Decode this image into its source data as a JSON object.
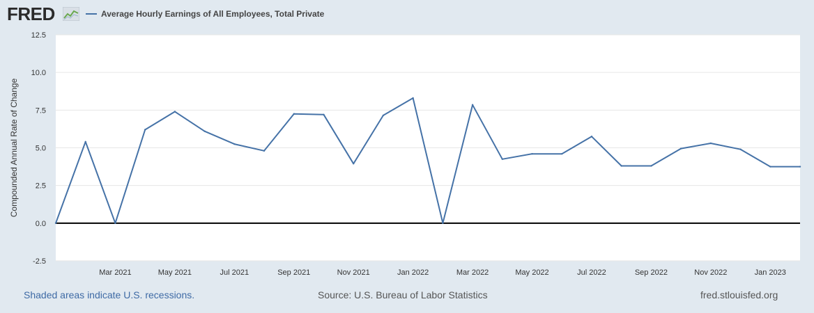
{
  "header": {
    "logo_text": "FRED",
    "logo_icon": "chart-line-icon",
    "legend_label": "Average Hourly Earnings of All Employees, Total Private"
  },
  "footer": {
    "recessions_note": "Shaded areas indicate U.S. recessions.",
    "source": "Source: U.S. Bureau of Labor Statistics",
    "site": "fred.stlouisfed.org"
  },
  "colors": {
    "page_background": "#e1e9f0",
    "plot_background": "#ffffff",
    "series_line": "#4572a7",
    "zero_line": "#000000",
    "gridline": "#e6e6e6",
    "link_text": "#3e6aa5"
  },
  "chart_data": {
    "type": "line",
    "ylabel": "Compounded Annual Rate of Change",
    "xlabel": "",
    "ylim": [
      -2.5,
      12.5
    ],
    "yticks": [
      "12.5",
      "10.0",
      "7.5",
      "5.0",
      "2.5",
      "0.0",
      "-2.5"
    ],
    "xlim": [
      "2021-01",
      "2023-02"
    ],
    "xtick_labels": [
      {
        "date": "2021-03",
        "label": "Mar 2021"
      },
      {
        "date": "2021-05",
        "label": "May 2021"
      },
      {
        "date": "2021-07",
        "label": "Jul 2021"
      },
      {
        "date": "2021-09",
        "label": "Sep 2021"
      },
      {
        "date": "2021-11",
        "label": "Nov 2021"
      },
      {
        "date": "2022-01",
        "label": "Jan 2022"
      },
      {
        "date": "2022-03",
        "label": "Mar 2022"
      },
      {
        "date": "2022-05",
        "label": "May 2022"
      },
      {
        "date": "2022-07",
        "label": "Jul 2022"
      },
      {
        "date": "2022-09",
        "label": "Sep 2022"
      },
      {
        "date": "2022-11",
        "label": "Nov 2022"
      },
      {
        "date": "2023-01",
        "label": "Jan 2023"
      }
    ],
    "grid": true,
    "legend_position": "top-left",
    "series": [
      {
        "name": "Average Hourly Earnings of All Employees, Total Private",
        "x": [
          "2021-01",
          "2021-02",
          "2021-03",
          "2021-04",
          "2021-05",
          "2021-06",
          "2021-07",
          "2021-08",
          "2021-09",
          "2021-10",
          "2021-11",
          "2021-12",
          "2022-01",
          "2022-02",
          "2022-03",
          "2022-04",
          "2022-05",
          "2022-06",
          "2022-07",
          "2022-08",
          "2022-09",
          "2022-10",
          "2022-11",
          "2022-12",
          "2023-01",
          "2023-02"
        ],
        "values": [
          0.0,
          5.4,
          0.0,
          6.2,
          7.4,
          6.1,
          5.25,
          4.8,
          7.25,
          7.2,
          3.95,
          7.15,
          8.3,
          0.0,
          7.85,
          4.25,
          4.6,
          4.6,
          5.75,
          3.8,
          3.8,
          4.95,
          5.3,
          4.9,
          3.75,
          3.75
        ]
      }
    ]
  }
}
